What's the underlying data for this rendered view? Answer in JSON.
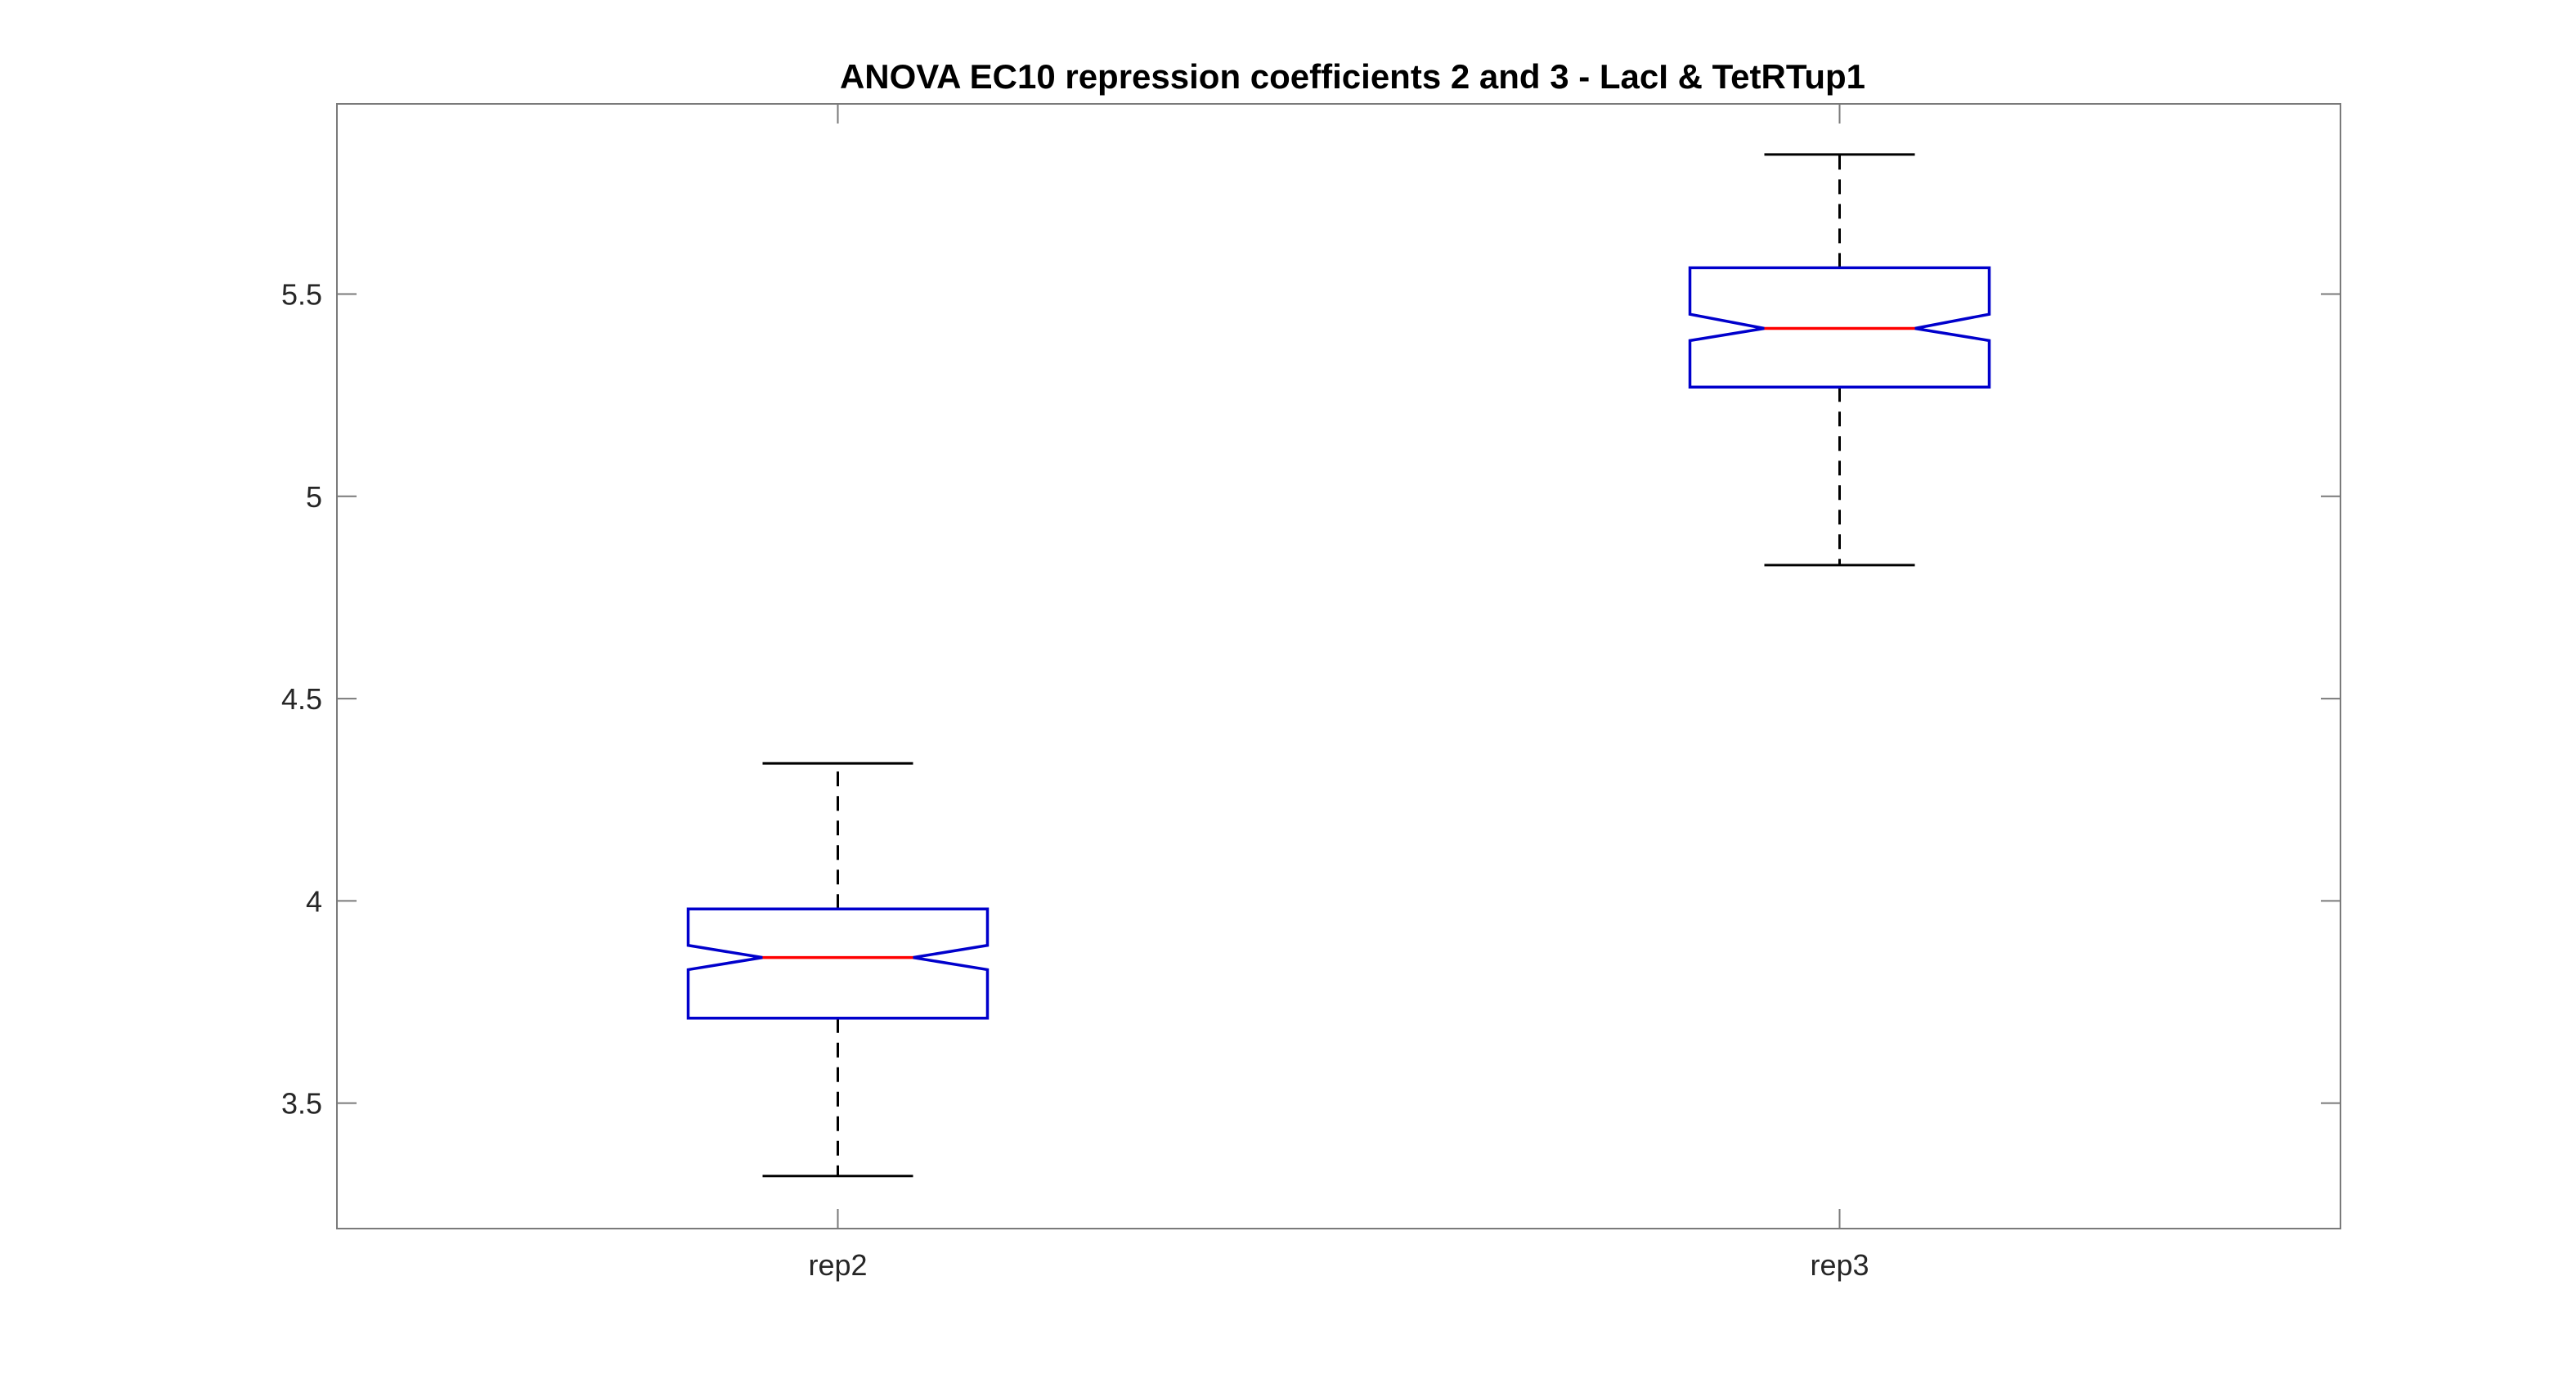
{
  "chart_data": {
    "type": "boxplot",
    "title": "ANOVA EC10 repression coefficients 2 and 3 - LacI & TetRTup1",
    "xlabel": "",
    "ylabel": "",
    "ylim": [
      3.19,
      5.97
    ],
    "yticks": [
      3.5,
      4,
      4.5,
      5,
      5.5
    ],
    "ytick_labels": [
      "3.5",
      "4",
      "4.5",
      "5",
      "5.5"
    ],
    "categories": [
      "rep2",
      "rep3"
    ],
    "notched": true,
    "grid": false,
    "boxes": [
      {
        "category": "rep2",
        "whisker_low": 3.32,
        "q1": 3.71,
        "notch_low": 3.83,
        "median": 3.86,
        "notch_high": 3.89,
        "q3": 3.98,
        "whisker_high": 4.34
      },
      {
        "category": "rep3",
        "whisker_low": 4.83,
        "q1": 5.27,
        "notch_low": 5.385,
        "median": 5.415,
        "notch_high": 5.45,
        "q3": 5.565,
        "whisker_high": 5.845
      }
    ],
    "colors": {
      "box": "#0000cc",
      "median": "#ff0000",
      "whisker": "#000000",
      "axis": "#7a7a7a"
    }
  }
}
